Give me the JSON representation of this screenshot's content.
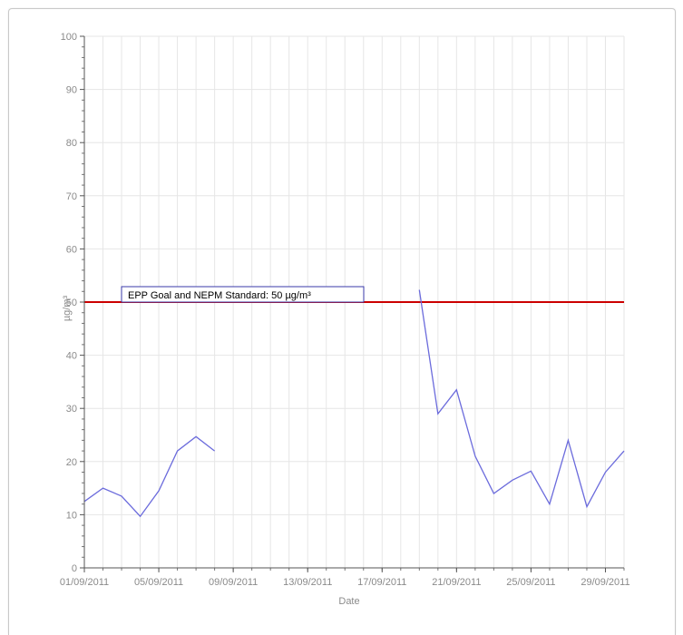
{
  "chart_data": {
    "type": "line",
    "title": "",
    "xlabel": "Date",
    "ylabel": "µg/m³",
    "ylim": [
      0,
      100
    ],
    "y_ticks": [
      0,
      10,
      20,
      30,
      40,
      50,
      60,
      70,
      80,
      90,
      100
    ],
    "x_start": "01/09/2011",
    "x_end": "30/09/2011",
    "x_tick_labels": [
      "01/09/2011",
      "05/09/2011",
      "09/09/2011",
      "13/09/2011",
      "17/09/2011",
      "21/09/2011",
      "25/09/2011",
      "29/09/2011"
    ],
    "grid": true,
    "series": [
      {
        "color": "#6b6bdc",
        "x": [
          "01/09/2011",
          "02/09/2011",
          "03/09/2011",
          "04/09/2011",
          "05/09/2011",
          "06/09/2011",
          "07/09/2011",
          "08/09/2011",
          "09/09/2011",
          "10/09/2011",
          "11/09/2011",
          "12/09/2011",
          "13/09/2011",
          "14/09/2011",
          "15/09/2011",
          "16/09/2011",
          "17/09/2011",
          "18/09/2011",
          "19/09/2011",
          "20/09/2011",
          "21/09/2011",
          "22/09/2011",
          "23/09/2011",
          "24/09/2011",
          "25/09/2011",
          "26/09/2011",
          "27/09/2011",
          "28/09/2011",
          "29/09/2011",
          "30/09/2011"
        ],
        "values": [
          12.5,
          15,
          13.5,
          9.7,
          14.5,
          22,
          24.7,
          22,
          null,
          null,
          null,
          null,
          null,
          null,
          null,
          null,
          null,
          null,
          52.3,
          29,
          33.5,
          21,
          14,
          16.5,
          18.2,
          12,
          24,
          11.5,
          18,
          22
        ]
      }
    ],
    "reference_line": {
      "value": 50,
      "color": "#cc0000",
      "label": "EPP Goal and NEPM Standard: 50 µg/m³"
    }
  }
}
